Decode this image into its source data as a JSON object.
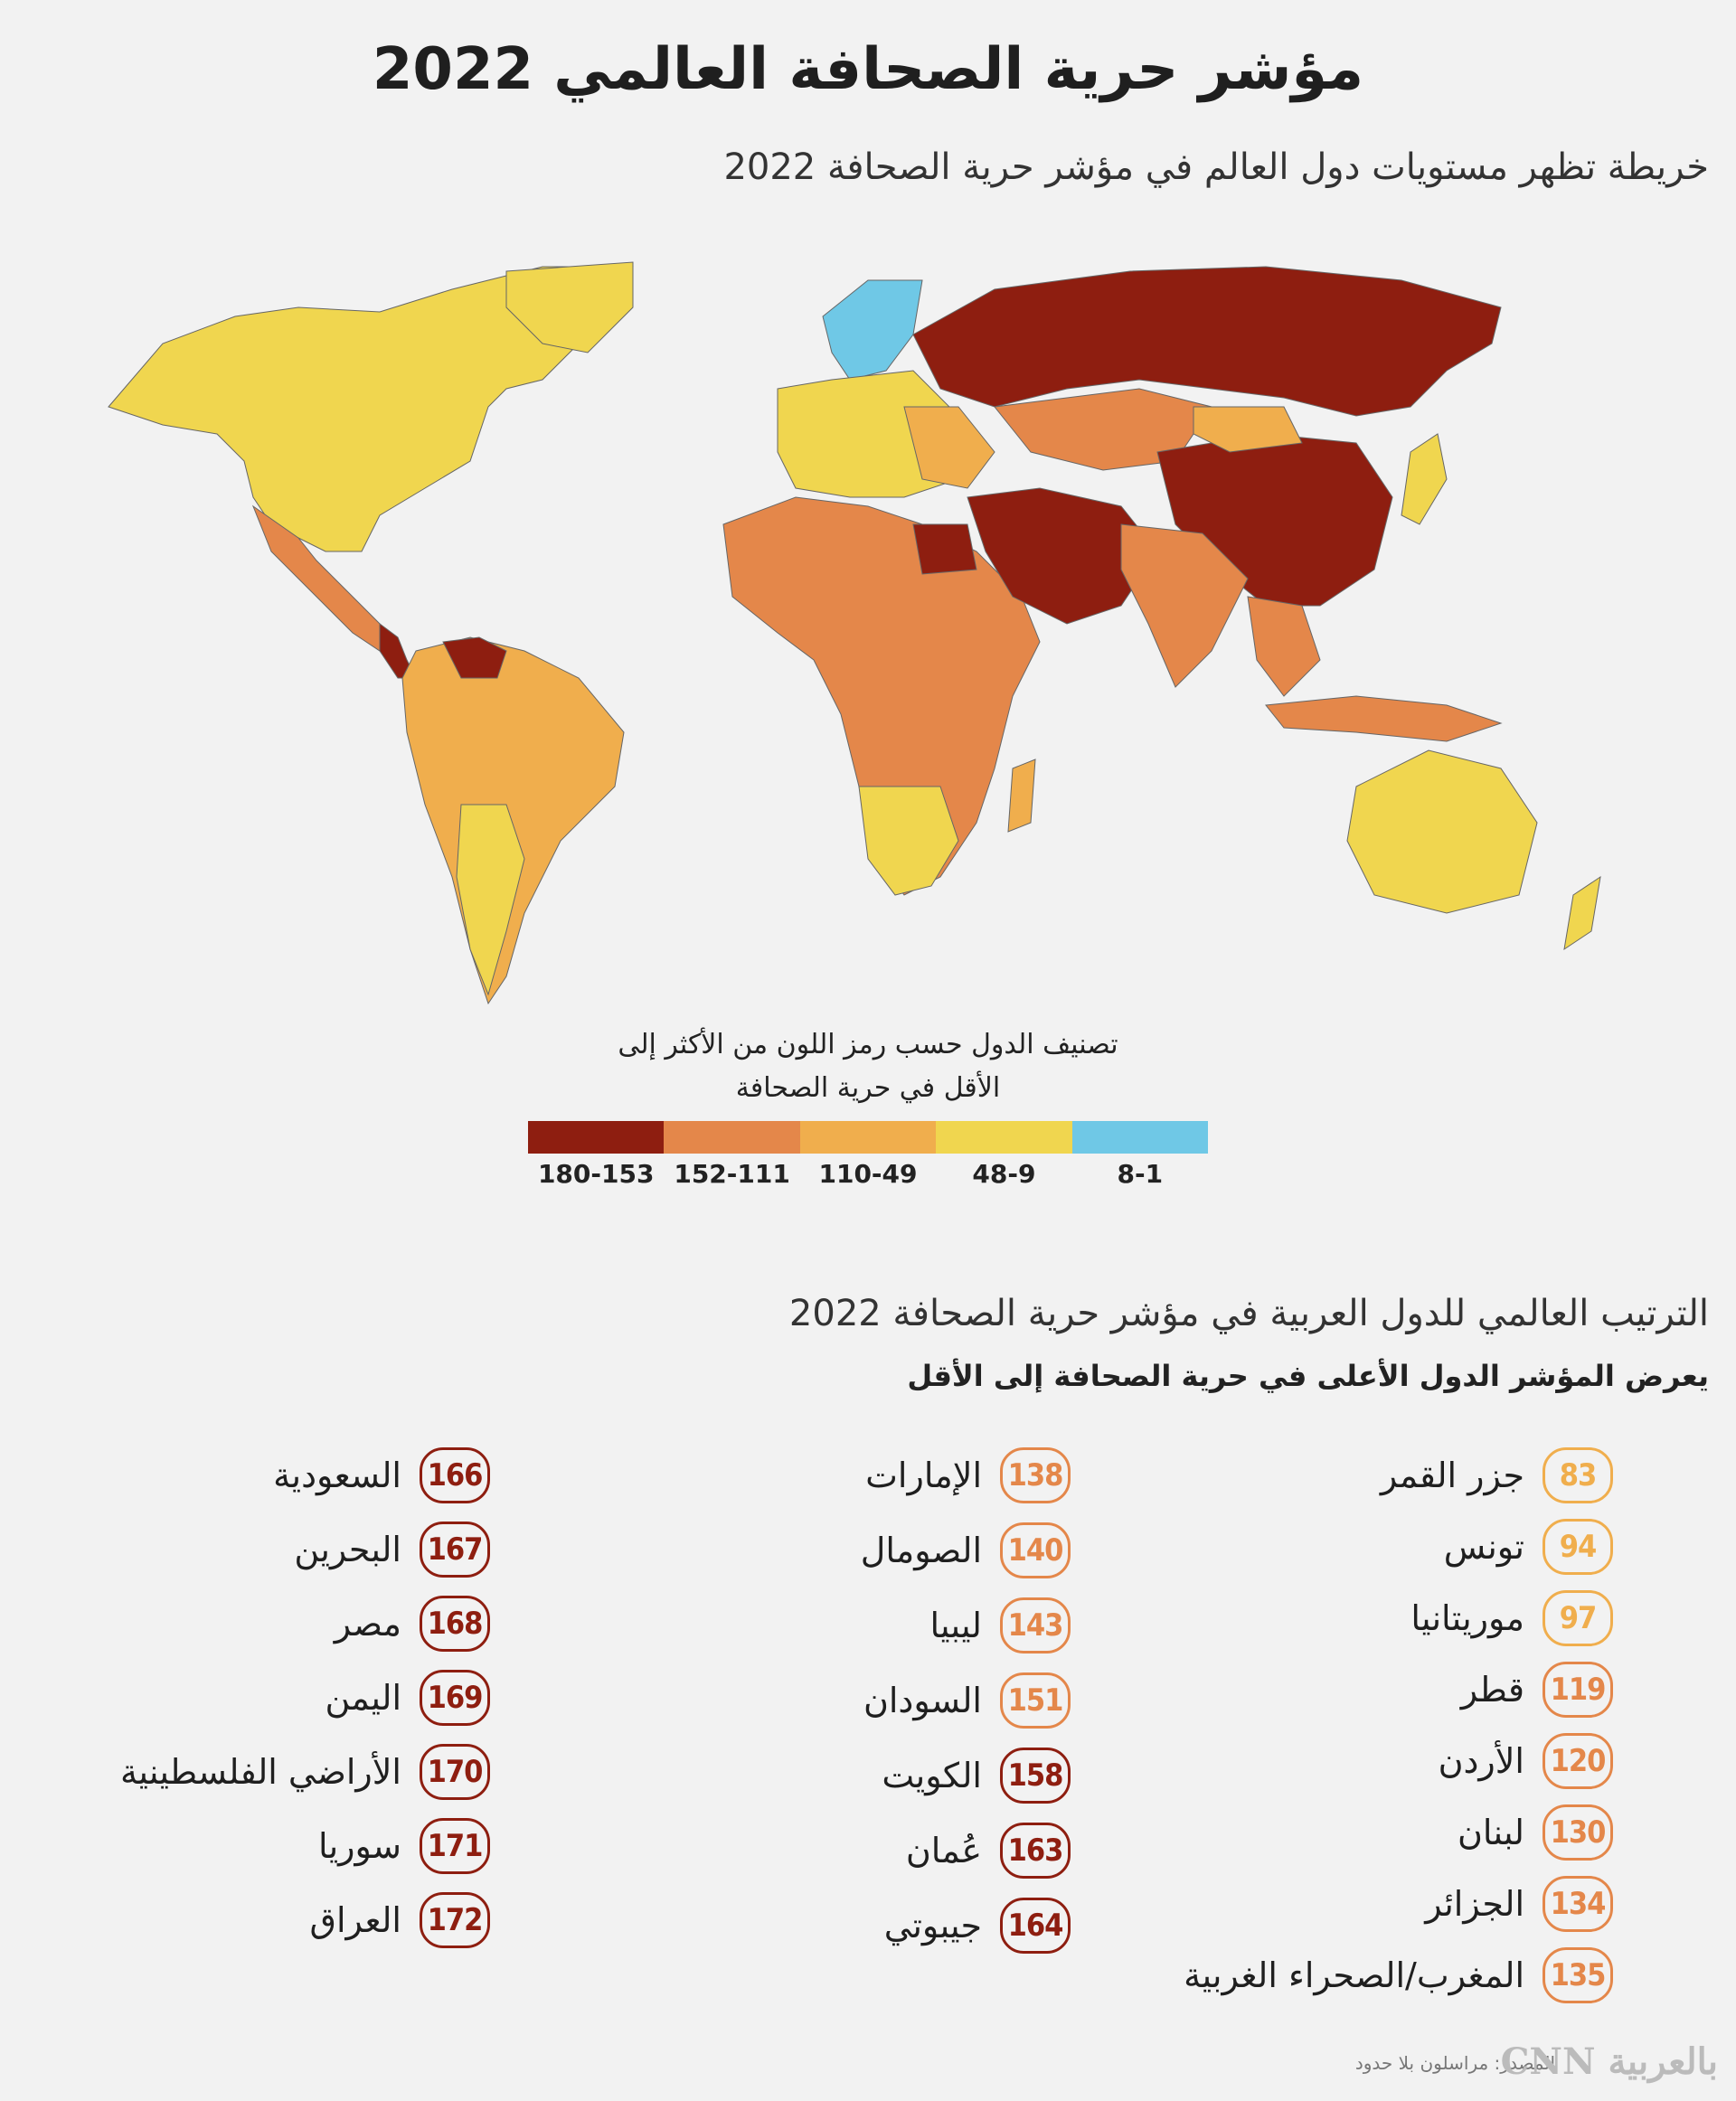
{
  "header": {
    "title": "مؤشر حرية الصحافة العالمي 2022",
    "subtitle": "خريطة تظهر مستويات دول العالم في مؤشر حرية الصحافة 2022"
  },
  "legend": {
    "title_line1": "تصنيف الدول حسب رمز اللون من الأكثر إلى",
    "title_line2": "الأقل في حرية الصحافة",
    "items": [
      {
        "label": "180-153",
        "color": "#8e1e10"
      },
      {
        "label": "152-111",
        "color": "#e4874a"
      },
      {
        "label": "110-49",
        "color": "#f0ae4d"
      },
      {
        "label": "48-9",
        "color": "#f0d64f"
      },
      {
        "label": "8-1",
        "color": "#6fc8e6"
      }
    ]
  },
  "ranking": {
    "title": "الترتيب العالمي للدول العربية في مؤشر حرية الصحافة 2022",
    "subtitle": "يعرض المؤشر الدول الأعلى في حرية الصحافة إلى الأقل",
    "columns": [
      [
        {
          "rank": "83",
          "country": "جزر القمر",
          "color": "#f0ae4d"
        },
        {
          "rank": "94",
          "country": "تونس",
          "color": "#f0ae4d"
        },
        {
          "rank": "97",
          "country": "موريتانيا",
          "color": "#f0ae4d"
        },
        {
          "rank": "119",
          "country": "قطر",
          "color": "#e4874a"
        },
        {
          "rank": "120",
          "country": "الأردن",
          "color": "#e4874a"
        },
        {
          "rank": "130",
          "country": "لبنان",
          "color": "#e4874a"
        },
        {
          "rank": "134",
          "country": "الجزائر",
          "color": "#e4874a"
        },
        {
          "rank": "135",
          "country": "المغرب/الصحراء الغربية",
          "color": "#e4874a"
        }
      ],
      [
        {
          "rank": "138",
          "country": "الإمارات",
          "color": "#e4874a"
        },
        {
          "rank": "140",
          "country": "الصومال",
          "color": "#e4874a"
        },
        {
          "rank": "143",
          "country": "ليبيا",
          "color": "#e4874a"
        },
        {
          "rank": "151",
          "country": "السودان",
          "color": "#e4874a"
        },
        {
          "rank": "158",
          "country": "الكويت",
          "color": "#8e1e10"
        },
        {
          "rank": "163",
          "country": "عُمان",
          "color": "#8e1e10"
        },
        {
          "rank": "164",
          "country": "جيبوتي",
          "color": "#8e1e10"
        }
      ],
      [
        {
          "rank": "166",
          "country": "السعودية",
          "color": "#8e1e10"
        },
        {
          "rank": "167",
          "country": "البحرين",
          "color": "#8e1e10"
        },
        {
          "rank": "168",
          "country": "مصر",
          "color": "#8e1e10"
        },
        {
          "rank": "169",
          "country": "اليمن",
          "color": "#8e1e10"
        },
        {
          "rank": "170",
          "country": "الأراضي الفلسطينية",
          "color": "#8e1e10"
        },
        {
          "rank": "171",
          "country": "سوريا",
          "color": "#8e1e10"
        },
        {
          "rank": "172",
          "country": "العراق",
          "color": "#8e1e10"
        }
      ]
    ]
  },
  "footer": {
    "source": "المصدر: مراسلون بلا حدود",
    "logo": "بالعربية CNN"
  }
}
